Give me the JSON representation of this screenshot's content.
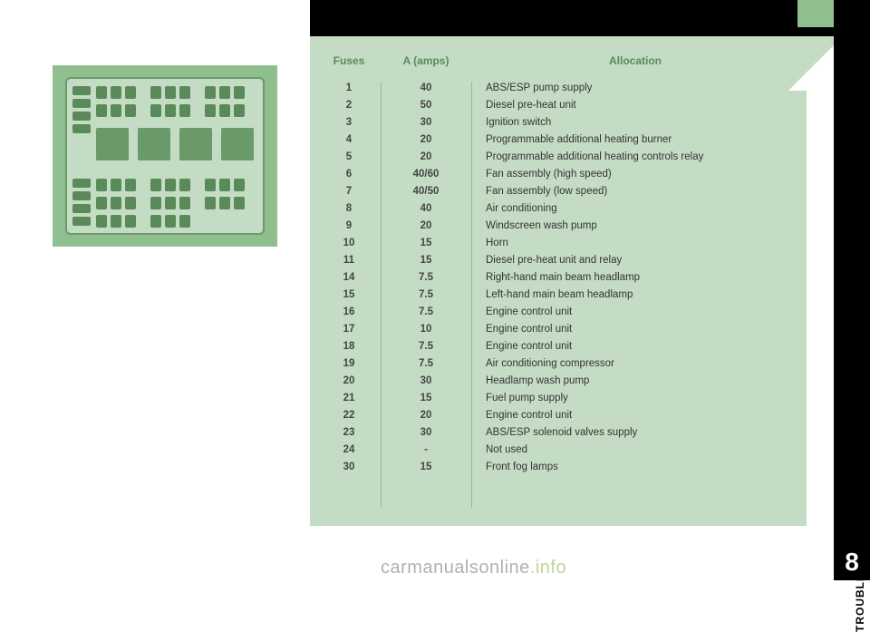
{
  "page": {
    "section_label": "TROUBLESHOOTING",
    "page_number": "8",
    "watermark_main": "carmanualsonline",
    "watermark_suffix": ".info"
  },
  "table": {
    "headers": {
      "fuses": "Fuses",
      "amps": "A (amps)",
      "allocation": "Allocation"
    },
    "rows": [
      {
        "fuse": "1",
        "amps": "40",
        "allocation": "ABS/ESP pump supply"
      },
      {
        "fuse": "2",
        "amps": "50",
        "allocation": "Diesel pre-heat unit"
      },
      {
        "fuse": "3",
        "amps": "30",
        "allocation": "Ignition switch"
      },
      {
        "fuse": "4",
        "amps": "20",
        "allocation": "Programmable additional heating burner"
      },
      {
        "fuse": "5",
        "amps": "20",
        "allocation": "Programmable additional heating controls relay"
      },
      {
        "fuse": "6",
        "amps": "40/60",
        "allocation": "Fan assembly (high speed)"
      },
      {
        "fuse": "7",
        "amps": "40/50",
        "allocation": "Fan assembly (low speed)"
      },
      {
        "fuse": "8",
        "amps": "40",
        "allocation": "Air conditioning"
      },
      {
        "fuse": "9",
        "amps": "20",
        "allocation": "Windscreen wash pump"
      },
      {
        "fuse": "10",
        "amps": "15",
        "allocation": "Horn"
      },
      {
        "fuse": "11",
        "amps": "15",
        "allocation": "Diesel pre-heat unit and relay"
      },
      {
        "fuse": "14",
        "amps": "7.5",
        "allocation": "Right-hand main beam headlamp"
      },
      {
        "fuse": "15",
        "amps": "7.5",
        "allocation": "Left-hand main beam headlamp"
      },
      {
        "fuse": "16",
        "amps": "7.5",
        "allocation": "Engine control unit"
      },
      {
        "fuse": "17",
        "amps": "10",
        "allocation": "Engine control unit"
      },
      {
        "fuse": "18",
        "amps": "7.5",
        "allocation": "Engine control unit"
      },
      {
        "fuse": "19",
        "amps": "7.5",
        "allocation": "Air conditioning compressor"
      },
      {
        "fuse": "20",
        "amps": "30",
        "allocation": "Headlamp wash pump"
      },
      {
        "fuse": "21",
        "amps": "15",
        "allocation": "Fuel pump supply"
      },
      {
        "fuse": "22",
        "amps": "20",
        "allocation": "Engine control unit"
      },
      {
        "fuse": "23",
        "amps": "30",
        "allocation": "ABS/ESP solenoid valves supply"
      },
      {
        "fuse": "24",
        "amps": "-",
        "allocation": "Not used"
      },
      {
        "fuse": "30",
        "amps": "15",
        "allocation": "Front fog lamps"
      }
    ]
  },
  "colors": {
    "panel_green": "#c4dcc4",
    "accent_green": "#8fbf8f",
    "dark_green": "#5a8a5a"
  }
}
